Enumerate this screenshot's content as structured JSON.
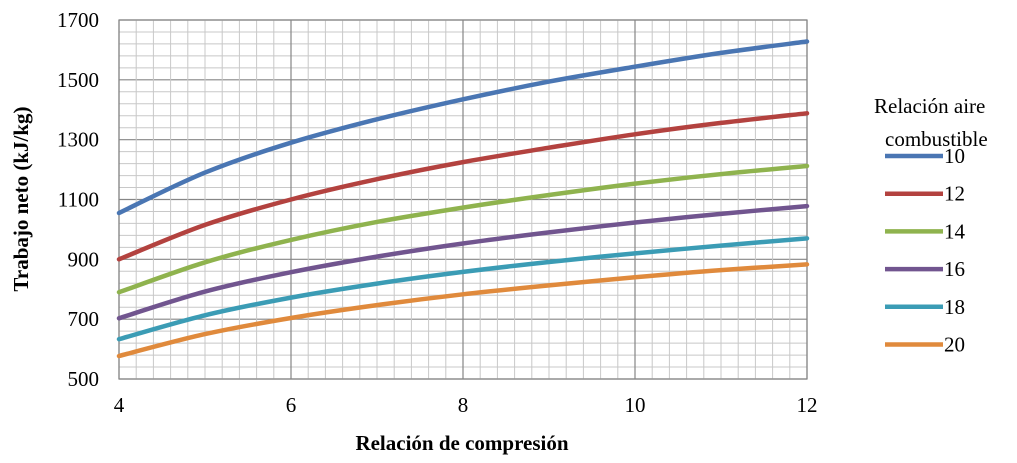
{
  "chart_data": {
    "type": "line",
    "title": "",
    "xlabel": "Relación de compresión",
    "ylabel": "Trabajo neto (kJ/kg)",
    "xlim": [
      4,
      12
    ],
    "ylim": [
      500,
      1700
    ],
    "x_ticks": [
      "4",
      "6",
      "8",
      "10",
      "12"
    ],
    "y_ticks": [
      "500",
      "700",
      "900",
      "1100",
      "1300",
      "1500",
      "1700"
    ],
    "grid": true,
    "legend_title_lines": [
      "Relación aire",
      "combustible"
    ],
    "legend_position": "right",
    "x": [
      4,
      5,
      6,
      7,
      8,
      9,
      10,
      11,
      12
    ],
    "series": [
      {
        "name": "10",
        "color": "#4a76b3",
        "values": [
          1055,
          1190,
          1290,
          1368,
          1435,
          1494,
          1544,
          1590,
          1628
        ]
      },
      {
        "name": "12",
        "color": "#b3423f",
        "values": [
          900,
          1015,
          1100,
          1168,
          1225,
          1273,
          1318,
          1356,
          1388
        ]
      },
      {
        "name": "14",
        "color": "#8fb34e",
        "values": [
          790,
          890,
          965,
          1025,
          1073,
          1115,
          1153,
          1185,
          1212
        ]
      },
      {
        "name": "16",
        "color": "#71558f",
        "values": [
          703,
          792,
          857,
          909,
          953,
          990,
          1023,
          1052,
          1078
        ]
      },
      {
        "name": "18",
        "color": "#3b9cb5",
        "values": [
          633,
          713,
          772,
          819,
          858,
          891,
          920,
          946,
          970
        ]
      },
      {
        "name": "20",
        "color": "#e08a3c",
        "values": [
          577,
          650,
          704,
          747,
          783,
          813,
          840,
          864,
          883
        ]
      }
    ]
  }
}
